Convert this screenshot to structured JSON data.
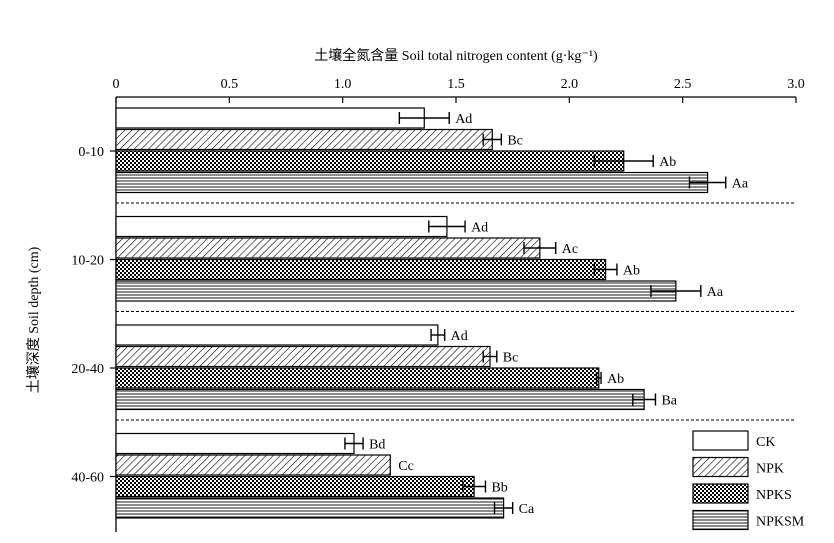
{
  "chart_data": {
    "type": "bar",
    "orientation": "horizontal",
    "title": "",
    "xlabel": "土壤全氮含量 Soil total nitrogen content (g·kg⁻¹)",
    "ylabel": "土壤深度 Soil depth (cm)",
    "xlim": [
      0,
      3.0
    ],
    "xticks": [
      "0",
      "0.5",
      "1.0",
      "1.5",
      "2.0",
      "2.5",
      "3.0"
    ],
    "x_axis_position": "top",
    "grid": false,
    "legend_position": "bottom-right",
    "categories": [
      "0-10",
      "10-20",
      "20-40",
      "40-60"
    ],
    "series": [
      {
        "name": "CK",
        "pattern": "white",
        "values": [
          1.36,
          1.46,
          1.42,
          1.05
        ],
        "errors": [
          0.11,
          0.08,
          0.03,
          0.04
        ],
        "labels": [
          "Ad",
          "Ad",
          "Ad",
          "Bd"
        ]
      },
      {
        "name": "NPK",
        "pattern": "diagonal-hatch",
        "values": [
          1.66,
          1.87,
          1.65,
          1.21
        ],
        "errors": [
          0.04,
          0.07,
          0.03,
          0.0
        ],
        "labels": [
          "Bc",
          "Ac",
          "Bc",
          "Cc"
        ]
      },
      {
        "name": "NPKS",
        "pattern": "crosshatch",
        "values": [
          2.24,
          2.16,
          2.13,
          1.58
        ],
        "errors": [
          0.13,
          0.05,
          0.01,
          0.05
        ],
        "labels": [
          "Ab",
          "Ab",
          "Ab",
          "Bb"
        ]
      },
      {
        "name": "NPKSM",
        "pattern": "horizontal-lines",
        "values": [
          2.61,
          2.47,
          2.33,
          1.71
        ],
        "errors": [
          0.08,
          0.11,
          0.05,
          0.04
        ],
        "labels": [
          "Aa",
          "Aa",
          "Ba",
          "Ca"
        ]
      }
    ]
  }
}
